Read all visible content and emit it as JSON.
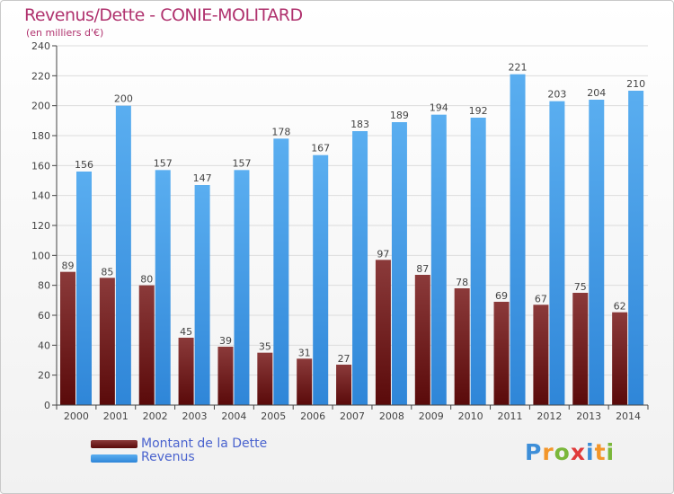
{
  "title": "Revenus/Dette - CONIE-MOLITARD",
  "subtitle": "(en milliers d'€)",
  "legend": {
    "debt_label": "Montant de la Dette",
    "revenue_label": "Revenus"
  },
  "logo": {
    "text": "Proxiti",
    "letters": [
      "P",
      "r",
      "o",
      "x",
      "i",
      "t",
      "i"
    ],
    "colors": [
      "#3d8ed8",
      "#f3962a",
      "#7ab73a",
      "#e03a3a",
      "#3d8ed8",
      "#f3962a",
      "#7ab73a"
    ]
  },
  "colors": {
    "debt_top": "#8b3a3a",
    "debt_bottom": "#5a0a0a",
    "revenue_top": "#5aaef0",
    "revenue_bottom": "#2f86d8",
    "title": "#b0326e"
  },
  "chart_data": {
    "type": "bar",
    "categories": [
      "2000",
      "2001",
      "2002",
      "2003",
      "2004",
      "2005",
      "2006",
      "2007",
      "2008",
      "2009",
      "2010",
      "2011",
      "2012",
      "2013",
      "2014"
    ],
    "series": [
      {
        "name": "Montant de la Dette",
        "values": [
          89,
          85,
          80,
          45,
          39,
          35,
          31,
          27,
          97,
          87,
          78,
          69,
          67,
          75,
          62
        ]
      },
      {
        "name": "Revenus",
        "values": [
          156,
          200,
          157,
          147,
          157,
          178,
          167,
          183,
          189,
          194,
          192,
          221,
          203,
          204,
          210
        ]
      }
    ],
    "title": "Revenus/Dette - CONIE-MOLITARD",
    "ylabel": "(en milliers d'€)",
    "ylim": [
      0,
      240
    ],
    "yticks": [
      0,
      20,
      40,
      60,
      80,
      100,
      120,
      140,
      160,
      180,
      200,
      220,
      240
    ],
    "grid": true
  }
}
